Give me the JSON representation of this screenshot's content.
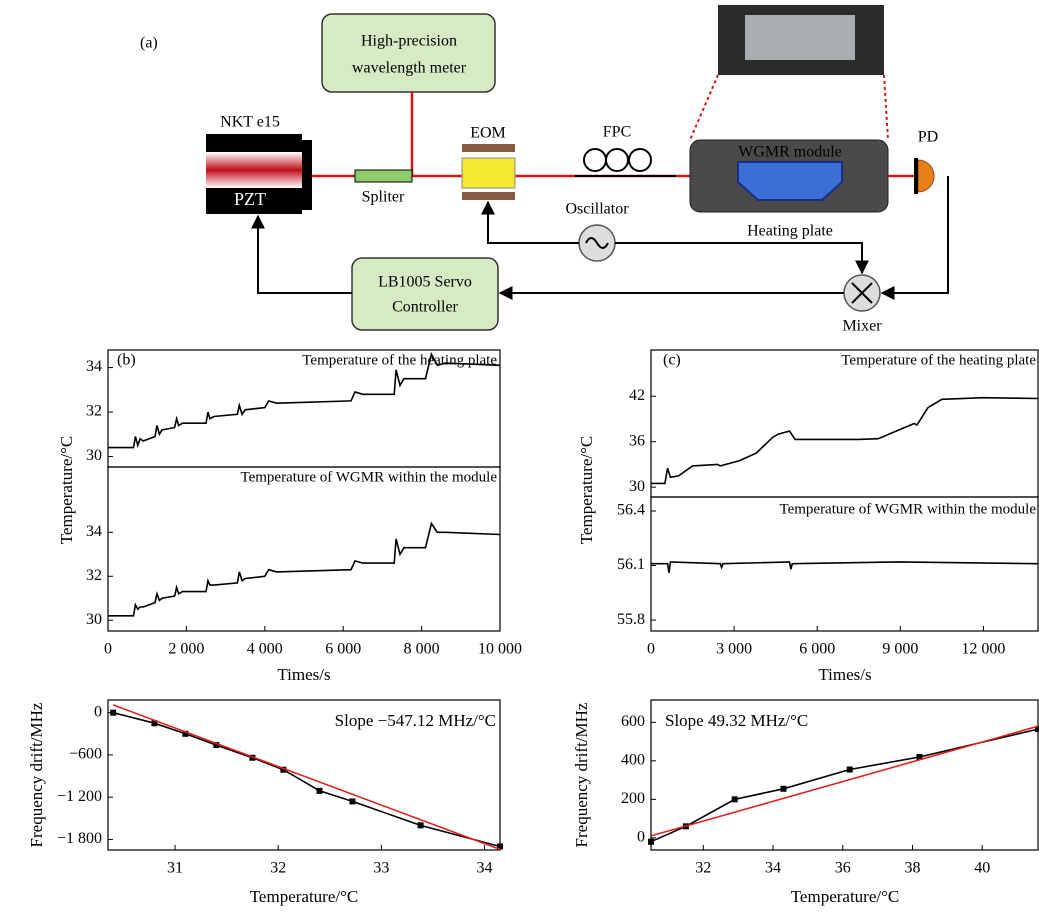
{
  "diagram": {
    "label": "(a)",
    "wavelength_meter": [
      "High-precision",
      "wavelength meter"
    ],
    "laser": "NKT e15",
    "pzt": "PZT",
    "splitter": "Spliter",
    "eom": "EOM",
    "fpc": "FPC",
    "module": "WGMR module",
    "heating_plate": "Heating plate",
    "pd": "PD",
    "oscillator": "Oscillator",
    "servo": [
      "LB1005 Servo",
      "Controller"
    ],
    "mixer": "Mixer"
  },
  "chart_data": [
    {
      "type": "line",
      "label": "(b)",
      "title": "Temperature of the heating plate",
      "ylabel": "Temperature/°C",
      "x": [
        0,
        650,
        700,
        760,
        820,
        900,
        1200,
        1250,
        1310,
        1380,
        1700,
        1750,
        1800,
        1900,
        2500,
        2550,
        2600,
        2700,
        3300,
        3350,
        3420,
        3500,
        4000,
        4100,
        4300,
        6200,
        6300,
        6500,
        7300,
        7350,
        7450,
        7550,
        8100,
        8250,
        8400,
        8600,
        10000
      ],
      "series": [
        {
          "color": "#000000",
          "values": [
            30.4,
            30.4,
            30.9,
            30.5,
            30.8,
            30.7,
            30.9,
            31.4,
            31.0,
            31.2,
            31.3,
            31.7,
            31.4,
            31.5,
            31.5,
            32.0,
            31.7,
            31.8,
            31.9,
            32.3,
            31.9,
            32.1,
            32.2,
            32.5,
            32.4,
            32.5,
            32.9,
            32.8,
            32.8,
            33.9,
            33.2,
            33.5,
            33.5,
            34.6,
            34.1,
            34.2,
            34.1
          ]
        }
      ],
      "xlim": [
        0,
        10000
      ],
      "ylim": [
        29.53,
        34.79
      ],
      "yticks": [
        30,
        32,
        34
      ]
    },
    {
      "type": "line",
      "title": "Temperature of WGMR within the module",
      "xlabel": "Times/s",
      "x": [
        0,
        650,
        700,
        760,
        820,
        900,
        1200,
        1250,
        1310,
        1380,
        1700,
        1750,
        1800,
        1900,
        2500,
        2550,
        2600,
        2700,
        3300,
        3350,
        3420,
        3500,
        4000,
        4100,
        4300,
        6200,
        6300,
        6500,
        7300,
        7350,
        7450,
        7550,
        8100,
        8250,
        8400,
        8600,
        10000
      ],
      "series": [
        {
          "color": "#000000",
          "values": [
            30.2,
            30.2,
            30.7,
            30.5,
            30.6,
            30.6,
            30.8,
            31.2,
            30.9,
            31.0,
            31.1,
            31.5,
            31.2,
            31.3,
            31.3,
            31.8,
            31.6,
            31.6,
            31.7,
            32.2,
            31.8,
            31.9,
            32.0,
            32.3,
            32.2,
            32.3,
            32.7,
            32.6,
            32.6,
            33.7,
            33.0,
            33.3,
            33.3,
            34.4,
            34.0,
            34.0,
            33.9
          ]
        }
      ],
      "xlim": [
        0,
        10000
      ],
      "ylim": [
        29.51,
        36.97
      ],
      "yticks": [
        30,
        32,
        34
      ],
      "xticks": [
        0,
        {
          "value": 2000,
          "label": "2 000"
        },
        {
          "value": 4000,
          "label": "4 000"
        },
        {
          "value": 6000,
          "label": "6 000"
        },
        {
          "value": 8000,
          "label": "8 000"
        },
        {
          "value": 10000,
          "label": "10 000"
        }
      ]
    },
    {
      "type": "line",
      "label": "(c)",
      "title": "Temperature of the heating plate",
      "ylabel": "Temperature/°C",
      "x": [
        0,
        500,
        600,
        700,
        1000,
        1500,
        2400,
        2500,
        3200,
        3800,
        4400,
        4600,
        5000,
        5200,
        7500,
        8200,
        9500,
        9600,
        10000,
        10500,
        12000,
        13970
      ],
      "series": [
        {
          "color": "#000000",
          "values": [
            30.5,
            30.5,
            32.5,
            31.3,
            31.5,
            32.8,
            33.0,
            32.8,
            33.5,
            34.5,
            36.6,
            37.0,
            37.4,
            36.3,
            36.3,
            36.4,
            38.4,
            38.2,
            40.5,
            41.6,
            41.8,
            41.7
          ]
        }
      ],
      "xlim": [
        0,
        13970
      ],
      "ylim": [
        28.7,
        48.1
      ],
      "yticks": [
        30,
        36,
        42
      ]
    },
    {
      "type": "line",
      "title": "Temperature of WGMR within the module",
      "xlabel": "Times/s",
      "x": [
        0,
        600,
        650,
        700,
        2500,
        2550,
        2600,
        5000,
        5050,
        5100,
        9000,
        13970
      ],
      "series": [
        {
          "color": "#000000",
          "values": [
            56.11,
            56.11,
            56.06,
            56.12,
            56.11,
            56.09,
            56.11,
            56.12,
            56.08,
            56.11,
            56.12,
            56.11
          ]
        }
      ],
      "xlim": [
        0,
        13970
      ],
      "ylim": [
        55.74,
        56.477
      ],
      "yticks": [
        55.8,
        56.1,
        56.4
      ],
      "xticks": [
        0,
        {
          "value": 3000,
          "label": "3 000"
        },
        {
          "value": 6000,
          "label": "6 000"
        },
        {
          "value": 9000,
          "label": "9 000"
        },
        {
          "value": 12000,
          "label": "12 000"
        }
      ]
    },
    {
      "type": "line",
      "annotation": "Slope −547.12 MHz/°C",
      "xlabel": "Temperature/°C",
      "ylabel": "Frequency drift/MHz",
      "series": [
        {
          "color": "#000000",
          "marker": "square",
          "x": [
            30.4,
            30.8,
            31.1,
            31.4,
            31.75,
            32.05,
            32.4,
            32.72,
            33.38,
            34.15
          ],
          "values": [
            0,
            -150,
            -300,
            -460,
            -640,
            -810,
            -1110,
            -1260,
            -1600,
            -1900
          ]
        },
        {
          "color": "#e02020",
          "x": [
            30.4,
            34.15
          ],
          "values": [
            110,
            -1942
          ]
        }
      ],
      "xlim": [
        30.35,
        34.15
      ],
      "ylim": [
        -1950,
        180
      ],
      "xticks": [
        31,
        32,
        33,
        34
      ],
      "yticks": [
        0,
        {
          "value": -600,
          "label": "−600"
        },
        {
          "value": -1200,
          "label": "−1 200"
        },
        {
          "value": -1800,
          "label": "−1 800"
        }
      ]
    },
    {
      "type": "line",
      "annotation": "Slope 49.32 MHz/°C",
      "xlabel": "Temperature/°C",
      "ylabel": "Frequency drift/MHz",
      "series": [
        {
          "color": "#000000",
          "marker": "square",
          "x": [
            30.5,
            31.5,
            32.9,
            34.3,
            36.2,
            38.2,
            41.6
          ],
          "values": [
            -20,
            60,
            200,
            255,
            355,
            420,
            565
          ]
        },
        {
          "color": "#e02020",
          "x": [
            30.5,
            41.6
          ],
          "values": [
            10,
            580
          ]
        }
      ],
      "xlim": [
        30.5,
        41.6
      ],
      "ylim": [
        -63,
        716
      ],
      "xticks": [
        32,
        34,
        36,
        38,
        40
      ],
      "yticks": [
        0,
        200,
        400,
        600
      ]
    }
  ]
}
